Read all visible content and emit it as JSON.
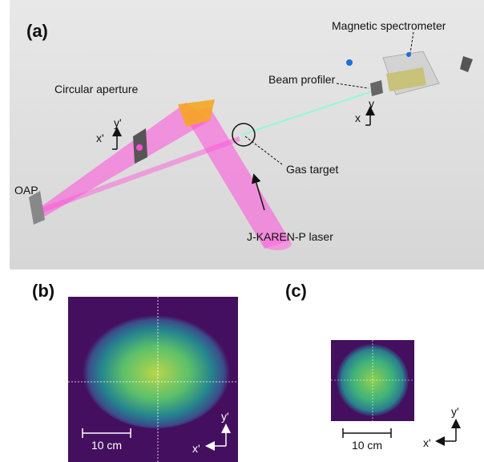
{
  "panel_a": {
    "label": "(a)",
    "magnetic_spectrometer": "Magnetic spectrometer",
    "beam_profiler": "Beam profiler",
    "circular_aperture": "Circular aperture",
    "aperture_axes": {
      "y": "y'",
      "x": "x'"
    },
    "profiler_axes": {
      "y": "y",
      "x": "x"
    },
    "oap": "OAP",
    "gas_target": "Gas target",
    "laser": "J-KAREN-P laser"
  },
  "panel_b": {
    "label": "(b)",
    "scale_bar": "10 cm",
    "axes": {
      "y": "y'",
      "x": "x'"
    }
  },
  "panel_c": {
    "label": "(c)",
    "scale_bar": "10 cm",
    "axes": {
      "y": "y'",
      "x": "x'"
    }
  }
}
